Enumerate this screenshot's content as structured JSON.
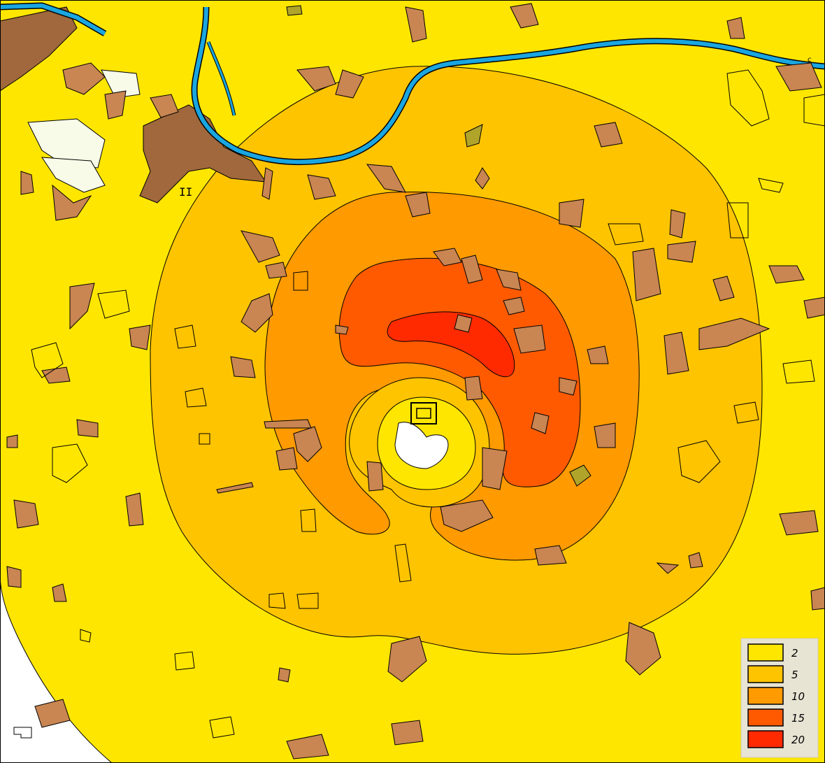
{
  "map": {
    "colors": {
      "background": "#ffffff",
      "outer_zone": "#ffe600",
      "river": "#1aa6e0",
      "dark_land": "#a0683c",
      "parcel": "#c98552",
      "olive_patch": "#b0a52a",
      "pale_area": "#f7fbe8",
      "outline": "#000000"
    },
    "center_labels": [
      "II",
      "c"
    ]
  },
  "legend": {
    "items": [
      {
        "label": "2",
        "color": "#ffe600"
      },
      {
        "label": "5",
        "color": "#ffc400"
      },
      {
        "label": "10",
        "color": "#ff9a00"
      },
      {
        "label": "15",
        "color": "#ff5a00"
      },
      {
        "label": "20",
        "color": "#ff2a00"
      }
    ],
    "background": "#e8e4d4"
  }
}
